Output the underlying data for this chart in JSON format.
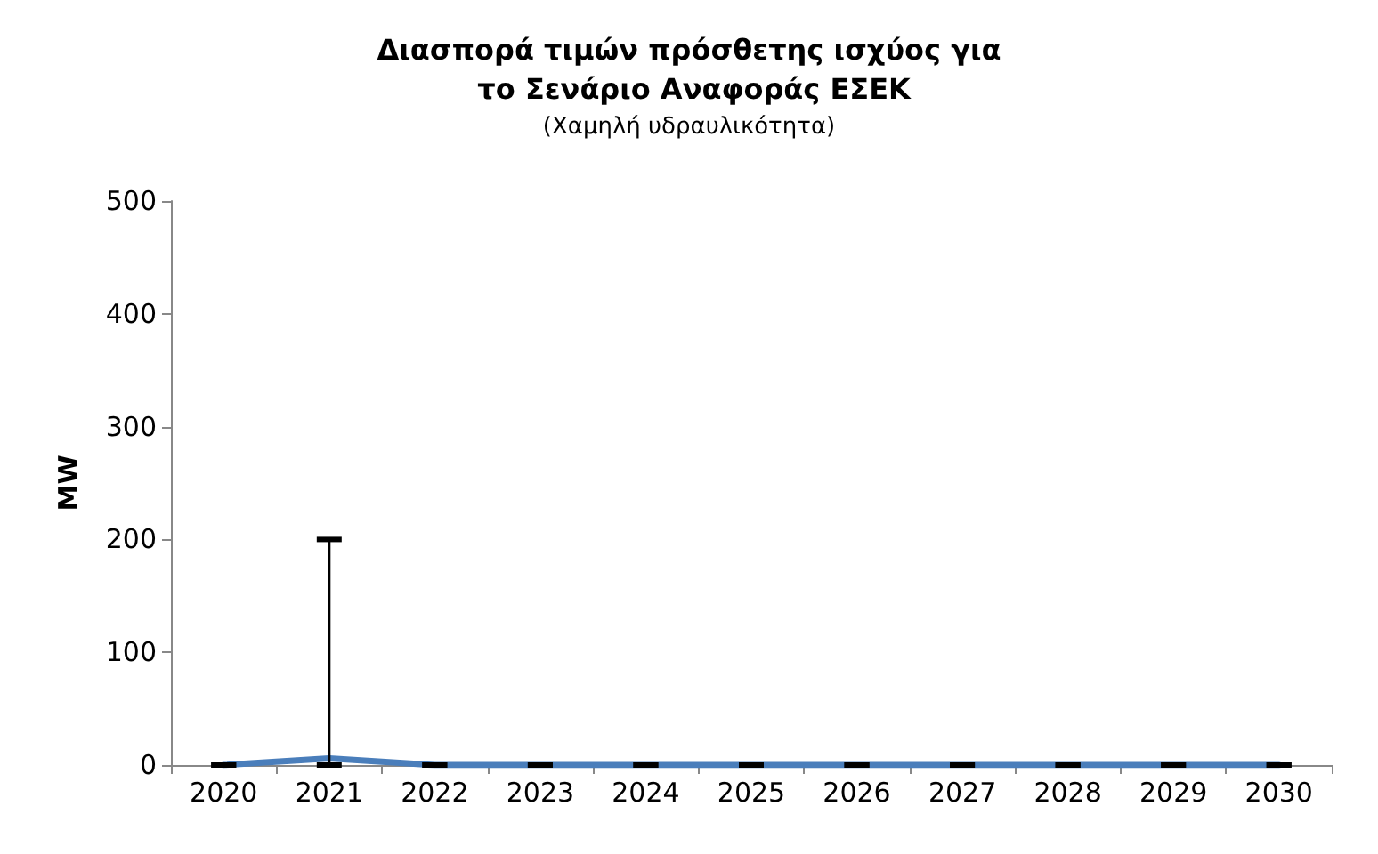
{
  "chart_data": {
    "type": "line",
    "title": "Διασπορά τιμών πρόσθετης ισχύος για το Σενάριο Αναφοράς ΕΣΕΚ",
    "subtitle": "(Χαμηλή υδραυλικότητα)",
    "ylabel": "MW",
    "categories": [
      "2020",
      "2021",
      "2022",
      "2023",
      "2024",
      "2025",
      "2026",
      "2027",
      "2028",
      "2029",
      "2030"
    ],
    "series": [
      {
        "color": "#4a7ebb",
        "values": [
          0,
          6,
          0,
          0,
          0,
          0,
          0,
          0,
          0,
          0,
          0
        ],
        "errors": [
          0,
          [
            0,
            200
          ],
          0,
          0,
          0,
          0,
          0,
          0,
          0,
          0,
          0
        ]
      }
    ],
    "ylim": [
      0,
      500
    ],
    "yticks": [
      0,
      100,
      200,
      300,
      400,
      500
    ],
    "grid": false,
    "marker": "none",
    "line_style": "solid"
  }
}
